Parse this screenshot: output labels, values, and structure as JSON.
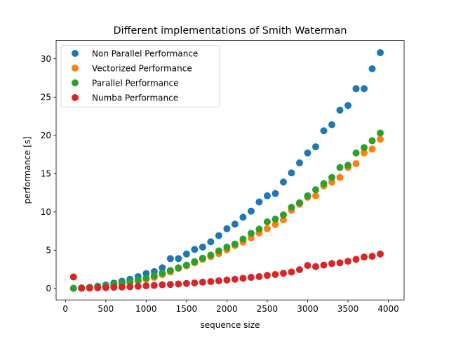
{
  "chart_data": {
    "type": "scatter",
    "title": "Different implementations of Smith Waterman",
    "xlabel": "sequence size",
    "ylabel": "performance [s]",
    "xlim": [
      -115,
      4195
    ],
    "ylim": [
      -1.5,
      32.4
    ],
    "xticks": [
      0,
      500,
      1000,
      1500,
      2000,
      2500,
      3000,
      3500,
      4000
    ],
    "yticks": [
      0,
      5,
      10,
      15,
      20,
      25,
      30
    ],
    "legend_position": "top-left",
    "grid": false,
    "x": [
      100,
      200,
      300,
      400,
      500,
      600,
      700,
      800,
      900,
      1000,
      1100,
      1200,
      1300,
      1400,
      1500,
      1600,
      1700,
      1800,
      1900,
      2000,
      2100,
      2200,
      2300,
      2400,
      2500,
      2600,
      2700,
      2800,
      2900,
      3000,
      3100,
      3200,
      3300,
      3400,
      3500,
      3600,
      3700,
      3800,
      3900
    ],
    "series": [
      {
        "name": "Non Parallel Performance",
        "color": "#1f77b4",
        "values": [
          0.02,
          0.08,
          0.15,
          0.3,
          0.45,
          0.7,
          0.95,
          1.2,
          1.55,
          1.95,
          2.2,
          2.7,
          3.9,
          3.9,
          4.5,
          5.1,
          5.4,
          6.1,
          6.9,
          7.8,
          8.4,
          9.3,
          10.1,
          11.3,
          12.1,
          12.4,
          13.9,
          15.1,
          16.4,
          17.7,
          18.5,
          20.6,
          21.4,
          23.3,
          23.9,
          26.1,
          26.1,
          28.7,
          30.8
        ]
      },
      {
        "name": "Vectorized Performance",
        "color": "#ff7f0e",
        "values": [
          0.01,
          0.05,
          0.1,
          0.2,
          0.3,
          0.45,
          0.6,
          0.8,
          1.0,
          1.2,
          1.45,
          1.8,
          2.15,
          2.6,
          2.95,
          3.35,
          3.8,
          4.15,
          4.55,
          5.05,
          5.6,
          6.05,
          6.6,
          7.25,
          7.8,
          8.35,
          8.95,
          10.2,
          11.0,
          11.9,
          12.1,
          13.4,
          13.9,
          14.5,
          15.8,
          16.3,
          17.7,
          18.2,
          19.5
        ]
      },
      {
        "name": "Parallel Performance",
        "color": "#2ca02c",
        "values": [
          0.02,
          0.06,
          0.12,
          0.22,
          0.34,
          0.5,
          0.68,
          0.88,
          1.1,
          1.35,
          1.65,
          2.0,
          2.35,
          2.7,
          3.05,
          3.5,
          3.95,
          4.35,
          4.9,
          5.4,
          5.8,
          6.45,
          7.2,
          7.75,
          8.7,
          9.05,
          9.6,
          10.6,
          11.2,
          12.1,
          12.9,
          13.7,
          14.5,
          15.8,
          16.1,
          17.7,
          18.4,
          19.3,
          20.3
        ]
      },
      {
        "name": "Numba Performance",
        "color": "#d62728",
        "values": [
          1.5,
          0.02,
          0.05,
          0.08,
          0.1,
          0.15,
          0.18,
          0.22,
          0.28,
          0.35,
          0.4,
          0.48,
          0.52,
          0.58,
          0.65,
          0.72,
          0.82,
          0.9,
          1.0,
          1.1,
          1.2,
          1.32,
          1.45,
          1.55,
          1.7,
          1.82,
          1.98,
          2.15,
          2.45,
          3.0,
          2.85,
          3.05,
          3.25,
          3.35,
          3.55,
          3.8,
          4.1,
          4.2,
          4.5
        ]
      }
    ]
  }
}
